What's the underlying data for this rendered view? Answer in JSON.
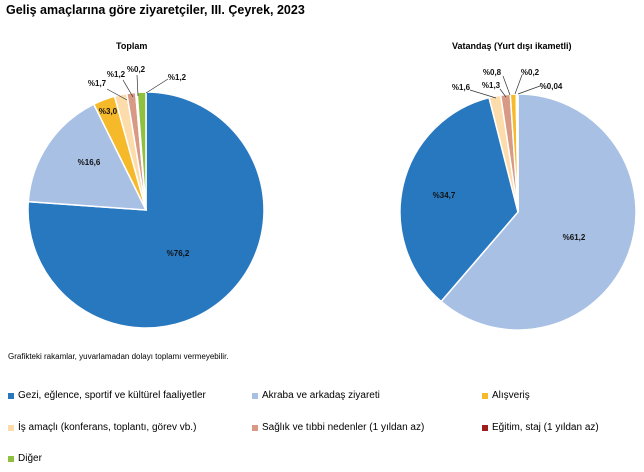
{
  "title": "Geliş amaçlarına göre ziyaretçiler, III. Çeyrek, 2023",
  "note": "Grafikteki rakamlar, yuvarlamadan dolayı toplamı vermeyebilir.",
  "colors": {
    "gezi": "#2878c0",
    "akraba": "#a8c0e4",
    "alisveris": "#f5b92a",
    "is": "#fcdcaa",
    "saglik": "#d89a84",
    "egitim": "#9c1e1e",
    "diger": "#90c040"
  },
  "legend": [
    {
      "key": "gezi",
      "label": "Gezi, eğlence, sportif ve kültürel faaliyetler"
    },
    {
      "key": "akraba",
      "label": "Akraba ve arkadaş ziyareti"
    },
    {
      "key": "alisveris",
      "label": "Alışveriş"
    },
    {
      "key": "is",
      "label": "İş amaçlı (konferans, toplantı, görev vb.)"
    },
    {
      "key": "saglik",
      "label": "Sağlık ve tıbbi nedenler (1 yıldan az)"
    },
    {
      "key": "egitim",
      "label": "Eğitim, staj (1 yıldan az)"
    },
    {
      "key": "diger",
      "label": "Diğer"
    }
  ],
  "chart_data": [
    {
      "type": "pie",
      "title": "Toplam",
      "slices": [
        {
          "key": "gezi",
          "value": 76.2,
          "label": "%76,2"
        },
        {
          "key": "akraba",
          "value": 16.6,
          "label": "%16,6"
        },
        {
          "key": "alisveris",
          "value": 3.0,
          "label": "%3,0"
        },
        {
          "key": "is",
          "value": 1.7,
          "label": "%1,7"
        },
        {
          "key": "saglik",
          "value": 1.2,
          "label": "%1,2"
        },
        {
          "key": "egitim",
          "value": 0.2,
          "label": "%0,2"
        },
        {
          "key": "diger",
          "value": 1.2,
          "label": "%1,2"
        }
      ]
    },
    {
      "type": "pie",
      "title": "Vatandaş (Yurt dışı ikametli)",
      "slices": [
        {
          "key": "akraba",
          "value": 61.2,
          "label": "%61,2"
        },
        {
          "key": "gezi",
          "value": 34.7,
          "label": "%34,7"
        },
        {
          "key": "is",
          "value": 1.6,
          "label": "%1,6"
        },
        {
          "key": "saglik",
          "value": 1.3,
          "label": "%1,3"
        },
        {
          "key": "alisveris",
          "value": 0.8,
          "label": "%0,8"
        },
        {
          "key": "egitim",
          "value": 0.2,
          "label": "%0,2"
        },
        {
          "key": "diger",
          "value": 0.04,
          "label": "%0,04"
        }
      ]
    }
  ]
}
